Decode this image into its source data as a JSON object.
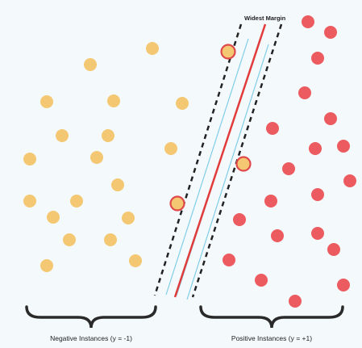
{
  "title": "Widest Margin",
  "negative_label": "Negative Instances (y = -1)",
  "positive_label": "Positive Instances (y = +1)",
  "colors": {
    "negative_point": "#f4c873",
    "positive_point": "#ec5b5f",
    "decision_boundary": "#e23b3b",
    "margin_lines": "#7fcde7",
    "margin_boundary": "#222222",
    "support_vector_ring": "#e0484b",
    "brace": "#2a2a2a"
  },
  "icons": {
    "negative_point": "yellow-circle",
    "positive_point": "red-circle",
    "support_vector": "ringed-circle",
    "group_brace": "curly-brace"
  }
}
